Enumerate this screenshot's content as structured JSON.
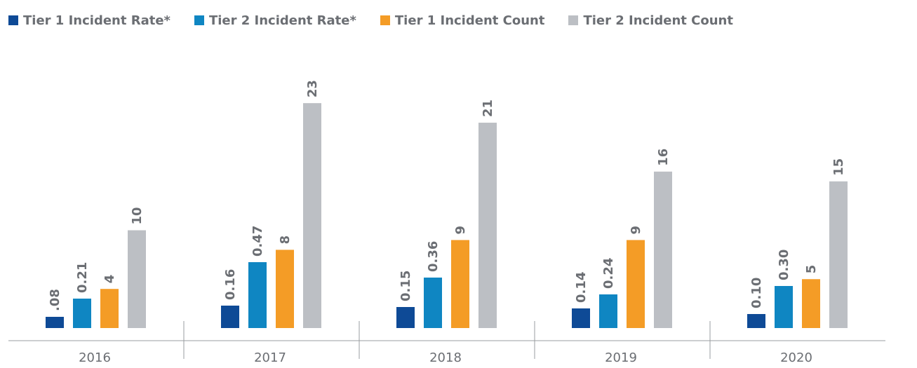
{
  "chart_data": {
    "type": "bar",
    "categories": [
      "2016",
      "2017",
      "2018",
      "2019",
      "2020"
    ],
    "series": [
      {
        "name": "Tier 1 Incident Rate*",
        "color": "#0e4a96",
        "values": [
          0.08,
          0.16,
          0.15,
          0.14,
          0.1
        ],
        "labels": [
          ".08",
          "0.16",
          "0.15",
          "0.14",
          "0.10"
        ]
      },
      {
        "name": "Tier 2 Incident Rate*",
        "color": "#0f86c2",
        "values": [
          0.21,
          0.47,
          0.36,
          0.24,
          0.3
        ],
        "labels": [
          "0.21",
          "0.47",
          "0.36",
          "0.24",
          "0.30"
        ]
      },
      {
        "name": "Tier 1 Incident Count",
        "color": "#f49c26",
        "values": [
          4,
          8,
          9,
          9,
          5
        ],
        "labels": [
          "4",
          "8",
          "9",
          "9",
          "5"
        ]
      },
      {
        "name": "Tier 2 Incident Count",
        "color": "#bcbfc4",
        "values": [
          10,
          23,
          21,
          16,
          15
        ],
        "labels": [
          "10",
          "23",
          "21",
          "16",
          "15"
        ]
      }
    ],
    "legend": "top-left",
    "grid": false
  }
}
